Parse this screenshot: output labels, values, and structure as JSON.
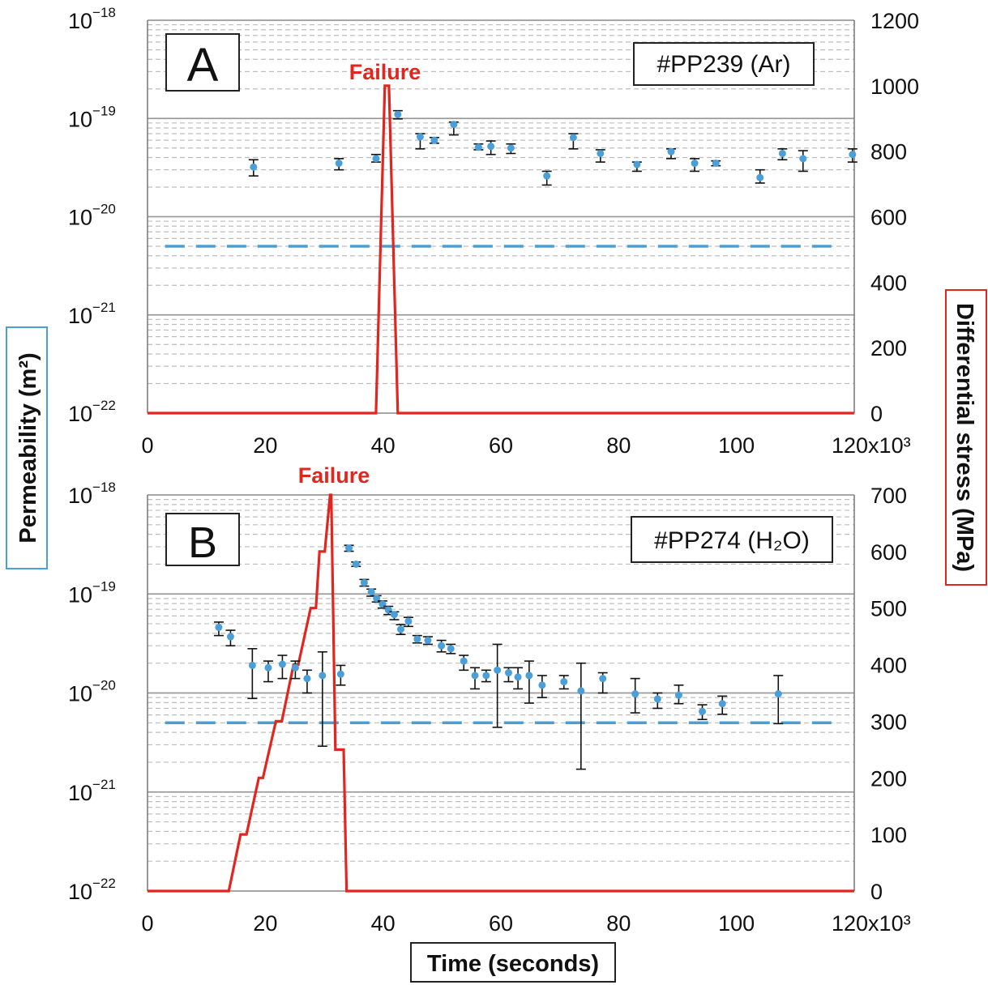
{
  "colors": {
    "stress": "#e0261f",
    "permeability": "#4a9fd8",
    "permeability_box": "#4a9fd8",
    "stress_box": "#e0261f",
    "grid_major": "#9a9a9a",
    "grid_minor": "#bdbdbd"
  },
  "labels": {
    "y_left": "Permeability (m²)",
    "y_right": "Differential stress (MPa)",
    "x": "Time (seconds)",
    "x_mult": "x10³"
  },
  "chart_data": [
    {
      "type": "scatter",
      "panel": "A",
      "sample": "#PP239 (Ar)",
      "annotation": "Failure",
      "xlim": [
        0,
        120
      ],
      "xticks": [
        0,
        20,
        40,
        60,
        80,
        100,
        120
      ],
      "xtick_labels": [
        "0",
        "20",
        "40",
        "60",
        "80",
        "100",
        "120x10³"
      ],
      "ylim_left_exp": [
        -22,
        -18
      ],
      "ylim_right": [
        0,
        1200
      ],
      "yticks_right": [
        0,
        200,
        400,
        600,
        800,
        1000,
        1200
      ],
      "grid": true,
      "permeability": [
        {
          "x": 18,
          "y": 3.2e-20,
          "lo": 2.6e-20,
          "hi": 3.8e-20
        },
        {
          "x": 32.5,
          "y": 3.5e-20,
          "lo": 3e-20,
          "hi": 3.9e-20
        },
        {
          "x": 38.8,
          "y": 3.9e-20,
          "lo": 3.6e-20,
          "hi": 4.3e-20
        },
        {
          "x": 42.5,
          "y": 1.1e-19,
          "lo": 9.9e-20,
          "hi": 1.2e-19
        },
        {
          "x": 46.3,
          "y": 6.5e-20,
          "lo": 4.9e-20,
          "hi": 7e-20
        },
        {
          "x": 48.7,
          "y": 6e-20,
          "lo": 5.6e-20,
          "hi": 6.4e-20
        },
        {
          "x": 52,
          "y": 8.7e-20,
          "lo": 6.8e-20,
          "hi": 9.2e-20
        },
        {
          "x": 56.2,
          "y": 5.1e-20,
          "lo": 4.8e-20,
          "hi": 5.5e-20
        },
        {
          "x": 58.3,
          "y": 5.2e-20,
          "lo": 4.3e-20,
          "hi": 5.9e-20
        },
        {
          "x": 61.7,
          "y": 5e-20,
          "lo": 4.4e-20,
          "hi": 5.5e-20
        },
        {
          "x": 67.8,
          "y": 2.6e-20,
          "lo": 2.1e-20,
          "hi": 2.9e-20
        },
        {
          "x": 72.3,
          "y": 6.4e-20,
          "lo": 4.9e-20,
          "hi": 7e-20
        },
        {
          "x": 76.9,
          "y": 4.4e-20,
          "lo": 3.6e-20,
          "hi": 4.8e-20
        },
        {
          "x": 83.1,
          "y": 3.4e-20,
          "lo": 2.9e-20,
          "hi": 3.6e-20
        },
        {
          "x": 88.9,
          "y": 4.6e-20,
          "lo": 3.9e-20,
          "hi": 4.9e-20
        },
        {
          "x": 92.9,
          "y": 3.5e-20,
          "lo": 2.9e-20,
          "hi": 3.9e-20
        },
        {
          "x": 96.5,
          "y": 3.5e-20,
          "lo": 3.3e-20,
          "hi": 3.7e-20
        },
        {
          "x": 104,
          "y": 2.5e-20,
          "lo": 2.2e-20,
          "hi": 3e-20
        },
        {
          "x": 107.8,
          "y": 4.4e-20,
          "lo": 3.8e-20,
          "hi": 4.9e-20
        },
        {
          "x": 111.3,
          "y": 3.9e-20,
          "lo": 2.9e-20,
          "hi": 4.7e-20
        },
        {
          "x": 119.7,
          "y": 4.3e-20,
          "lo": 3.6e-20,
          "hi": 4.9e-20
        }
      ],
      "baseline": {
        "y": 5e-21,
        "x": [
          3,
          118
        ]
      },
      "stress": [
        [
          0,
          0
        ],
        [
          38.8,
          0
        ],
        [
          40.3,
          1000
        ],
        [
          41.0,
          1000
        ],
        [
          42.5,
          0
        ],
        [
          120,
          0
        ]
      ]
    },
    {
      "type": "scatter",
      "panel": "B",
      "sample": "#PP274 (H₂O)",
      "annotation": "Failure",
      "xlim": [
        0,
        120
      ],
      "xticks": [
        0,
        20,
        40,
        60,
        80,
        100,
        120
      ],
      "xtick_labels": [
        "0",
        "20",
        "40",
        "60",
        "80",
        "100",
        "120x10³"
      ],
      "ylim_left_exp": [
        -22,
        -18
      ],
      "ylim_right": [
        0,
        700
      ],
      "yticks_right": [
        0,
        100,
        200,
        300,
        400,
        500,
        600,
        700
      ],
      "grid": true,
      "permeability": [
        {
          "x": 12.1,
          "y": 4.6e-20,
          "lo": 3.8e-20,
          "hi": 5.2e-20
        },
        {
          "x": 14.1,
          "y": 3.7e-20,
          "lo": 3e-20,
          "hi": 4.3e-20
        },
        {
          "x": 17.8,
          "y": 1.9e-20,
          "lo": 8.8e-21,
          "hi": 2.8e-20
        },
        {
          "x": 20.5,
          "y": 1.8e-20,
          "lo": 1.3e-20,
          "hi": 2.1e-20
        },
        {
          "x": 22.9,
          "y": 1.95e-20,
          "lo": 1.4e-20,
          "hi": 2.4e-20
        },
        {
          "x": 25.1,
          "y": 1.8e-20,
          "lo": 1.4e-20,
          "hi": 2.1e-20
        },
        {
          "x": 27.1,
          "y": 1.4e-20,
          "lo": 1e-20,
          "hi": 1.7e-20
        },
        {
          "x": 29.7,
          "y": 1.5e-20,
          "lo": 2.9e-21,
          "hi": 2.6e-20
        },
        {
          "x": 32.8,
          "y": 1.55e-20,
          "lo": 1.2e-20,
          "hi": 1.9e-20
        },
        {
          "x": 34.2,
          "y": 2.9e-19,
          "lo": 2.7e-19,
          "hi": 3.1e-19
        },
        {
          "x": 35.4,
          "y": 2e-19,
          "lo": 1.9e-19,
          "hi": 2.1e-19
        },
        {
          "x": 36.8,
          "y": 1.3e-19,
          "lo": 1.2e-19,
          "hi": 1.4e-19
        },
        {
          "x": 38.0,
          "y": 1.05e-19,
          "lo": 9.5e-20,
          "hi": 1.12e-19
        },
        {
          "x": 38.9,
          "y": 9e-20,
          "lo": 8.3e-20,
          "hi": 9.6e-20
        },
        {
          "x": 39.9,
          "y": 7.9e-20,
          "lo": 7.2e-20,
          "hi": 8.5e-20
        },
        {
          "x": 40.9,
          "y": 6.9e-20,
          "lo": 6.2e-20,
          "hi": 7.5e-20
        },
        {
          "x": 41.9,
          "y": 6.2e-20,
          "lo": 5.5e-20,
          "hi": 6.6e-20
        },
        {
          "x": 43.0,
          "y": 4.4e-20,
          "lo": 3.9e-20,
          "hi": 4.9e-20
        },
        {
          "x": 44.3,
          "y": 5.3e-20,
          "lo": 4.7e-20,
          "hi": 5.8e-20
        },
        {
          "x": 45.8,
          "y": 3.5e-20,
          "lo": 3.2e-20,
          "hi": 3.8e-20
        },
        {
          "x": 47.6,
          "y": 3.4e-20,
          "lo": 3.1e-20,
          "hi": 3.7e-20
        },
        {
          "x": 49.9,
          "y": 3e-20,
          "lo": 2.6e-20,
          "hi": 3.4e-20
        },
        {
          "x": 51.5,
          "y": 2.8e-20,
          "lo": 2.5e-20,
          "hi": 3.1e-20
        },
        {
          "x": 53.7,
          "y": 2.1e-20,
          "lo": 1.7e-20,
          "hi": 2.4e-20
        },
        {
          "x": 55.6,
          "y": 1.5e-20,
          "lo": 1.1e-20,
          "hi": 1.8e-20
        },
        {
          "x": 57.5,
          "y": 1.5e-20,
          "lo": 1.3e-20,
          "hi": 1.7e-20
        },
        {
          "x": 59.4,
          "y": 1.7e-20,
          "lo": 4.5e-21,
          "hi": 3.1e-20
        },
        {
          "x": 61.3,
          "y": 1.6e-20,
          "lo": 1.3e-20,
          "hi": 1.8e-20
        },
        {
          "x": 62.9,
          "y": 1.45e-20,
          "lo": 1.1e-20,
          "hi": 1.8e-20
        },
        {
          "x": 64.8,
          "y": 1.5e-20,
          "lo": 7.9e-21,
          "hi": 2.1e-20
        },
        {
          "x": 67.0,
          "y": 1.2e-20,
          "lo": 9e-21,
          "hi": 1.5e-20
        },
        {
          "x": 70.7,
          "y": 1.3e-20,
          "lo": 1.1e-20,
          "hi": 1.5e-20
        },
        {
          "x": 73.6,
          "y": 1.05e-20,
          "lo": 1.7e-21,
          "hi": 2e-20
        },
        {
          "x": 77.3,
          "y": 1.4e-20,
          "lo": 1e-20,
          "hi": 1.6e-20
        },
        {
          "x": 82.8,
          "y": 9.8e-21,
          "lo": 6.3e-21,
          "hi": 1.4e-20
        },
        {
          "x": 86.6,
          "y": 8.7e-21,
          "lo": 7e-21,
          "hi": 1e-20
        },
        {
          "x": 90.2,
          "y": 9.5e-21,
          "lo": 7.8e-21,
          "hi": 1.2e-20
        },
        {
          "x": 94.2,
          "y": 6.5e-21,
          "lo": 5.4e-21,
          "hi": 7.6e-21
        },
        {
          "x": 97.6,
          "y": 7.8e-21,
          "lo": 6.1e-21,
          "hi": 9.3e-21
        },
        {
          "x": 107.1,
          "y": 9.8e-21,
          "lo": 4.9e-21,
          "hi": 1.5e-20
        }
      ],
      "baseline": {
        "y": 5e-21,
        "x": [
          3,
          118
        ]
      },
      "stress": [
        [
          0,
          0
        ],
        [
          13.8,
          0
        ],
        [
          15.8,
          100
        ],
        [
          16.8,
          100
        ],
        [
          18.9,
          200
        ],
        [
          19.6,
          200
        ],
        [
          21.8,
          300
        ],
        [
          22.8,
          300
        ],
        [
          24.8,
          400
        ],
        [
          25.6,
          400
        ],
        [
          27.7,
          500
        ],
        [
          28.6,
          500
        ],
        [
          29.2,
          600
        ],
        [
          30.1,
          600
        ],
        [
          31.0,
          700
        ],
        [
          31.2,
          700
        ],
        [
          31.9,
          250
        ],
        [
          33.3,
          250
        ],
        [
          33.8,
          0
        ],
        [
          120,
          0
        ]
      ]
    }
  ]
}
